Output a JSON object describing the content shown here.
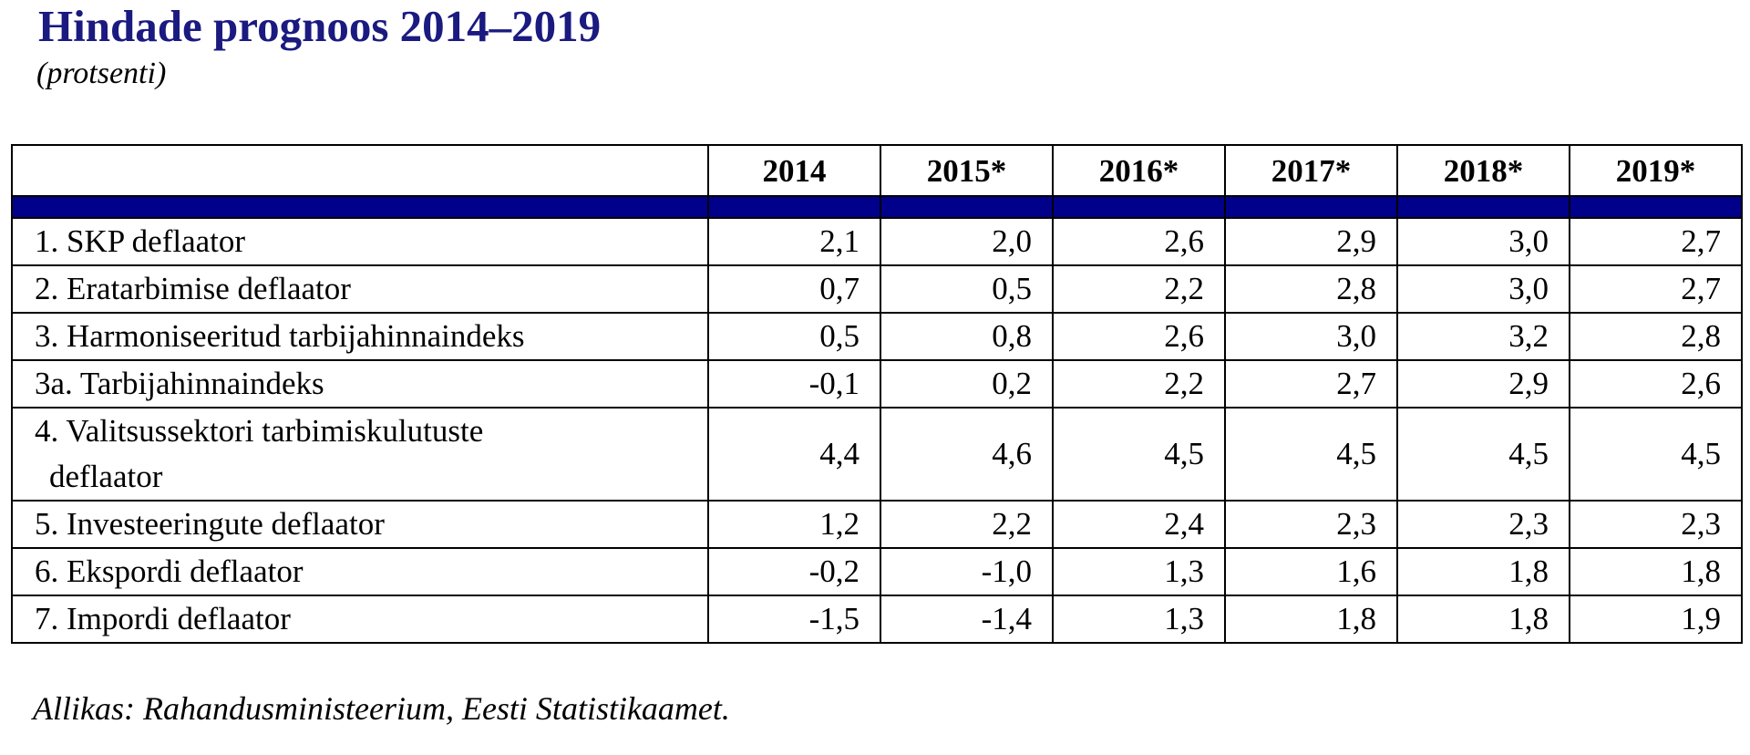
{
  "title": "Hindade prognoos 2014–2019",
  "subtitle": "(protsenti)",
  "table": {
    "columns": [
      "",
      "2014",
      "2015*",
      "2016*",
      "2017*",
      "2018*",
      "2019*"
    ],
    "rows": [
      {
        "label": "1. SKP deflaator",
        "values": [
          "2,1",
          "2,0",
          "2,6",
          "2,9",
          "3,0",
          "2,7"
        ]
      },
      {
        "label": "2. Eratarbimise deflaator",
        "values": [
          "0,7",
          "0,5",
          "2,2",
          "2,8",
          "3,0",
          "2,7"
        ]
      },
      {
        "label": "3. Harmoniseeritud tarbijahinnaindeks",
        "values": [
          "0,5",
          "0,8",
          "2,6",
          "3,0",
          "3,2",
          "2,8"
        ]
      },
      {
        "label": "3a. Tarbijahinnaindeks",
        "values": [
          "-0,1",
          "0,2",
          "2,2",
          "2,7",
          "2,9",
          "2,6"
        ]
      },
      {
        "label": "4. Valitsussektori tarbimiskulutuste",
        "label_cont": "deflaator",
        "values": [
          "4,4",
          "4,6",
          "4,5",
          "4,5",
          "4,5",
          "4,5"
        ]
      },
      {
        "label": "5. Investeeringute deflaator",
        "values": [
          "1,2",
          "2,2",
          "2,4",
          "2,3",
          "2,3",
          "2,3"
        ]
      },
      {
        "label": "6. Ekspordi deflaator",
        "values": [
          "-0,2",
          "-1,0",
          "1,3",
          "1,6",
          "1,8",
          "1,8"
        ]
      },
      {
        "label": "7. Impordi deflaator",
        "values": [
          "-1,5",
          "-1,4",
          "1,3",
          "1,8",
          "1,8",
          "1,9"
        ]
      }
    ]
  },
  "source": "Allikas: Rahandusministeerium, Eesti Statistikaamet.",
  "colors": {
    "title": "#1a1a80",
    "band": "#00008b"
  }
}
